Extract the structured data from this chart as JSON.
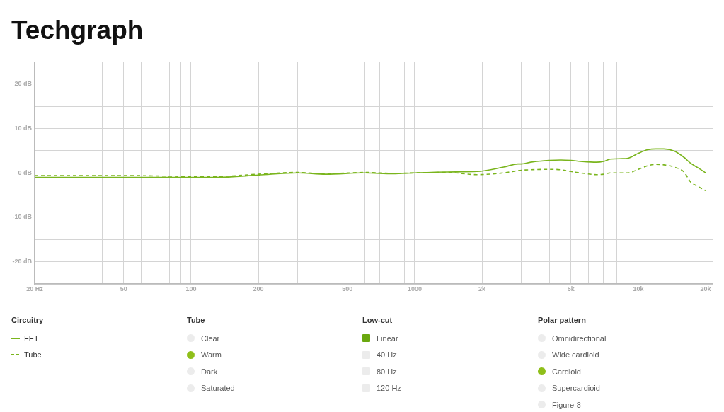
{
  "chart_data": {
    "type": "line",
    "title": "Techgraph",
    "legend_title": "Circuitry",
    "legend": "bottom",
    "log": "x",
    "grid": true,
    "marker": "none",
    "x": [
      20,
      50,
      100,
      130,
      200,
      300,
      400,
      600,
      800,
      1000,
      1400,
      1900,
      2500,
      2900,
      3000,
      3300,
      4000,
      4500,
      5000,
      5500,
      6500,
      7000,
      7500,
      8500,
      9000,
      10000,
      11000,
      12000,
      13000,
      14500,
      16000,
      17100,
      18400,
      20000
    ],
    "series": [
      {
        "name": "FET",
        "color": "#7ab51d",
        "line_style": "solid",
        "values": [
          -1.0,
          -1.0,
          -1.0,
          -1.0,
          -0.5,
          0.0,
          -0.3,
          0.0,
          -0.2,
          0.0,
          0.2,
          0.3,
          1.3,
          2.0,
          2.0,
          2.4,
          2.8,
          2.9,
          2.8,
          2.6,
          2.4,
          2.6,
          3.1,
          3.2,
          3.3,
          4.4,
          5.2,
          5.4,
          5.4,
          4.9,
          3.5,
          2.2,
          1.2,
          0.0
        ]
      },
      {
        "name": "Tube",
        "color": "#7ab51d",
        "line_style": "dashed",
        "values": [
          -0.6,
          -0.6,
          -0.8,
          -0.8,
          -0.3,
          0.1,
          -0.2,
          0.1,
          -0.1,
          0.0,
          0.1,
          -0.4,
          0.0,
          0.5,
          0.6,
          0.7,
          0.8,
          0.7,
          0.3,
          0.0,
          -0.4,
          -0.3,
          0.0,
          0.0,
          0.0,
          0.8,
          1.6,
          1.9,
          1.8,
          1.3,
          0.2,
          -2.0,
          -3.0,
          -4.0
        ]
      }
    ],
    "xlim": [
      20,
      21500
    ],
    "xticks": [
      {
        "value": 20,
        "label": "20 Hz"
      },
      {
        "value": 30,
        "label": null
      },
      {
        "value": 40,
        "label": null
      },
      50,
      {
        "value": 60,
        "label": null
      },
      {
        "value": 70,
        "label": null
      },
      {
        "value": 80,
        "label": null
      },
      {
        "value": 90,
        "label": null
      },
      100,
      200,
      {
        "value": 300,
        "label": null
      },
      {
        "value": 400,
        "label": null
      },
      500,
      {
        "value": 600,
        "label": null
      },
      {
        "value": 700,
        "label": null
      },
      {
        "value": 800,
        "label": null
      },
      {
        "value": 900,
        "label": null
      },
      1000,
      {
        "value": 2000,
        "label": "2k"
      },
      {
        "value": 3000,
        "label": null
      },
      {
        "value": 4000,
        "label": null
      },
      {
        "value": 5000,
        "label": "5k"
      },
      {
        "value": 6000,
        "label": null
      },
      {
        "value": 7000,
        "label": null
      },
      {
        "value": 8000,
        "label": null
      },
      {
        "value": 9000,
        "label": null
      },
      {
        "value": 10000,
        "label": "10k"
      },
      {
        "value": 20000,
        "label": "20k"
      }
    ],
    "ylim": [
      -25,
      25
    ],
    "yticks": [
      {
        "value": -25,
        "label": null
      },
      {
        "value": -20,
        "label": "-20 dB"
      },
      {
        "value": -15,
        "label": null
      },
      {
        "value": -10,
        "label": "-10 dB"
      },
      {
        "value": -5,
        "label": null
      },
      {
        "value": 0,
        "label": "0 dB"
      },
      {
        "value": 5,
        "label": null
      },
      {
        "value": 10,
        "label": "10 dB"
      },
      {
        "value": 15,
        "label": null
      },
      {
        "value": 20,
        "label": "20 dB"
      },
      {
        "value": 25,
        "label": null
      }
    ],
    "annotations": [
      "Tube",
      "Clear",
      "Warm",
      "Dark",
      "Saturated",
      "Low-cut",
      "Linear",
      "40 Hz",
      "80 Hz",
      "120 Hz",
      "Polar pattern",
      "Omnidirectional",
      "Wide cardioid",
      "Cardioid",
      "Supercardioid",
      "Figure-8"
    ]
  }
}
